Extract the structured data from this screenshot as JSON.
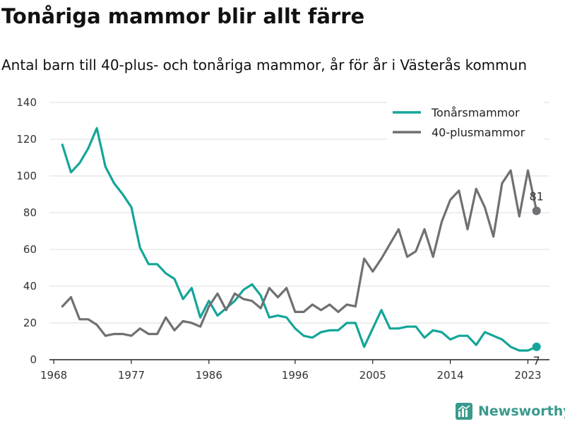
{
  "header": {
    "title": "Tonåriga mammor blir allt färre",
    "subtitle": "Antal barn till 40-plus- och tonåriga mammor, år för år i Västerås kommun"
  },
  "brand": {
    "name": "Newsworthy",
    "icon": "newsworthy-logo-icon"
  },
  "colors": {
    "teen": "#14a599",
    "forty": "#707074",
    "grid": "#dddddd",
    "axis": "#222222"
  },
  "chart_data": {
    "type": "line",
    "x": [
      1969,
      1970,
      1971,
      1972,
      1973,
      1974,
      1975,
      1976,
      1977,
      1978,
      1979,
      1980,
      1981,
      1982,
      1983,
      1984,
      1985,
      1986,
      1987,
      1988,
      1989,
      1990,
      1991,
      1992,
      1993,
      1994,
      1995,
      1996,
      1997,
      1998,
      1999,
      2000,
      2001,
      2002,
      2003,
      2004,
      2005,
      2006,
      2007,
      2008,
      2009,
      2010,
      2011,
      2012,
      2013,
      2014,
      2015,
      2016,
      2017,
      2018,
      2019,
      2020,
      2021,
      2022,
      2023,
      2024
    ],
    "series": [
      {
        "name": "Tonårsmammor",
        "color": "#14a599",
        "values": [
          117,
          102,
          107,
          115,
          126,
          105,
          96,
          90,
          83,
          61,
          52,
          52,
          47,
          44,
          33,
          39,
          23,
          32,
          24,
          28,
          32,
          38,
          41,
          35,
          23,
          24,
          23,
          17,
          13,
          12,
          15,
          16,
          16,
          20,
          20,
          7,
          17,
          27,
          17,
          17,
          18,
          18,
          12,
          16,
          15,
          11,
          13,
          13,
          8,
          15,
          13,
          11,
          7,
          5,
          5,
          7
        ]
      },
      {
        "name": "40-plusmammor",
        "color": "#707074",
        "values": [
          29,
          34,
          22,
          22,
          19,
          13,
          14,
          14,
          13,
          17,
          14,
          14,
          23,
          16,
          21,
          20,
          18,
          29,
          36,
          27,
          36,
          33,
          32,
          28,
          39,
          34,
          39,
          26,
          26,
          30,
          27,
          30,
          26,
          30,
          29,
          55,
          48,
          55,
          63,
          71,
          56,
          59,
          71,
          56,
          75,
          87,
          92,
          71,
          93,
          83,
          67,
          96,
          103,
          78,
          103,
          81
        ]
      }
    ],
    "end_labels": [
      {
        "series": "Tonårsmammor",
        "value": "7"
      },
      {
        "series": "40-plusmammor",
        "value": "81"
      }
    ],
    "x_ticks": [
      1968,
      1977,
      1986,
      1996,
      2005,
      2014,
      2023
    ],
    "y_ticks": [
      0,
      20,
      40,
      60,
      80,
      100,
      120,
      140
    ],
    "xlim": [
      1967.5,
      2025.5
    ],
    "ylim": [
      0,
      140
    ],
    "xlabel": "",
    "ylabel": "",
    "legend": {
      "position": "top-right",
      "entries": [
        "Tonårsmammor",
        "40-plusmammor"
      ]
    },
    "grid": "horizontal"
  }
}
